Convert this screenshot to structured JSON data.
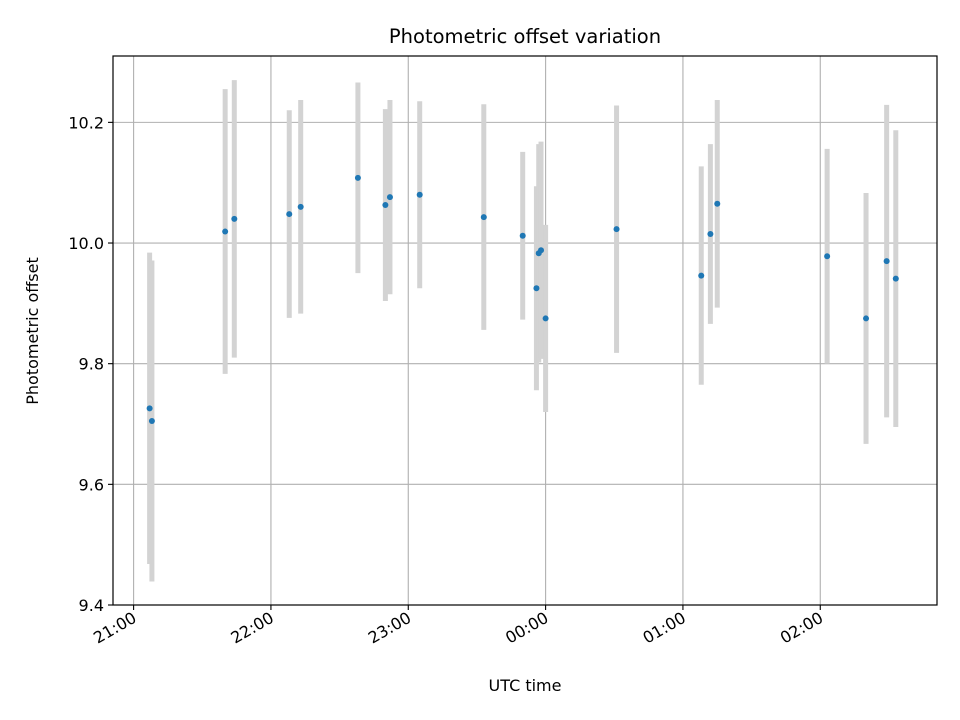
{
  "chart_data": {
    "type": "scatter",
    "title": "Photometric offset variation",
    "xlabel": "UTC time",
    "ylabel": "Photometric offset",
    "xlim": [
      "20:51",
      "02:51"
    ],
    "ylim": [
      9.4,
      10.31
    ],
    "x_ticks": [
      "21:00",
      "22:00",
      "23:00",
      "00:00",
      "01:00",
      "02:00"
    ],
    "y_ticks": [
      "9.4",
      "9.6",
      "9.8",
      "10.0",
      "10.2"
    ],
    "grid": true,
    "marker_color": "#1f77b4",
    "errorbar_color": "#d3d3d3",
    "points": [
      {
        "x": "21:07",
        "y": 9.726,
        "yerr": 0.258
      },
      {
        "x": "21:08",
        "y": 9.705,
        "yerr": 0.266
      },
      {
        "x": "21:40",
        "y": 10.019,
        "yerr": 0.236
      },
      {
        "x": "21:44",
        "y": 10.04,
        "yerr": 0.23
      },
      {
        "x": "22:08",
        "y": 10.048,
        "yerr": 0.172
      },
      {
        "x": "22:13",
        "y": 10.06,
        "yerr": 0.177
      },
      {
        "x": "22:38",
        "y": 10.108,
        "yerr": 0.158
      },
      {
        "x": "22:50",
        "y": 10.063,
        "yerr": 0.159
      },
      {
        "x": "22:52",
        "y": 10.076,
        "yerr": 0.161
      },
      {
        "x": "23:05",
        "y": 10.08,
        "yerr": 0.155
      },
      {
        "x": "23:33",
        "y": 10.043,
        "yerr": 0.187
      },
      {
        "x": "23:50",
        "y": 10.012,
        "yerr": 0.139
      },
      {
        "x": "23:56",
        "y": 9.925,
        "yerr": 0.169
      },
      {
        "x": "23:57",
        "y": 9.983,
        "yerr": 0.181
      },
      {
        "x": "23:58",
        "y": 9.988,
        "yerr": 0.18
      },
      {
        "x": "00:00",
        "y": 9.875,
        "yerr": 0.155
      },
      {
        "x": "00:31",
        "y": 10.023,
        "yerr": 0.205
      },
      {
        "x": "01:08",
        "y": 9.946,
        "yerr": 0.181
      },
      {
        "x": "01:12",
        "y": 10.015,
        "yerr": 0.149
      },
      {
        "x": "01:15",
        "y": 10.065,
        "yerr": 0.172
      },
      {
        "x": "02:03",
        "y": 9.978,
        "yerr": 0.178
      },
      {
        "x": "02:20",
        "y": 9.875,
        "yerr": 0.208
      },
      {
        "x": "02:29",
        "y": 9.97,
        "yerr": 0.259
      },
      {
        "x": "02:33",
        "y": 9.941,
        "yerr": 0.246
      }
    ]
  }
}
